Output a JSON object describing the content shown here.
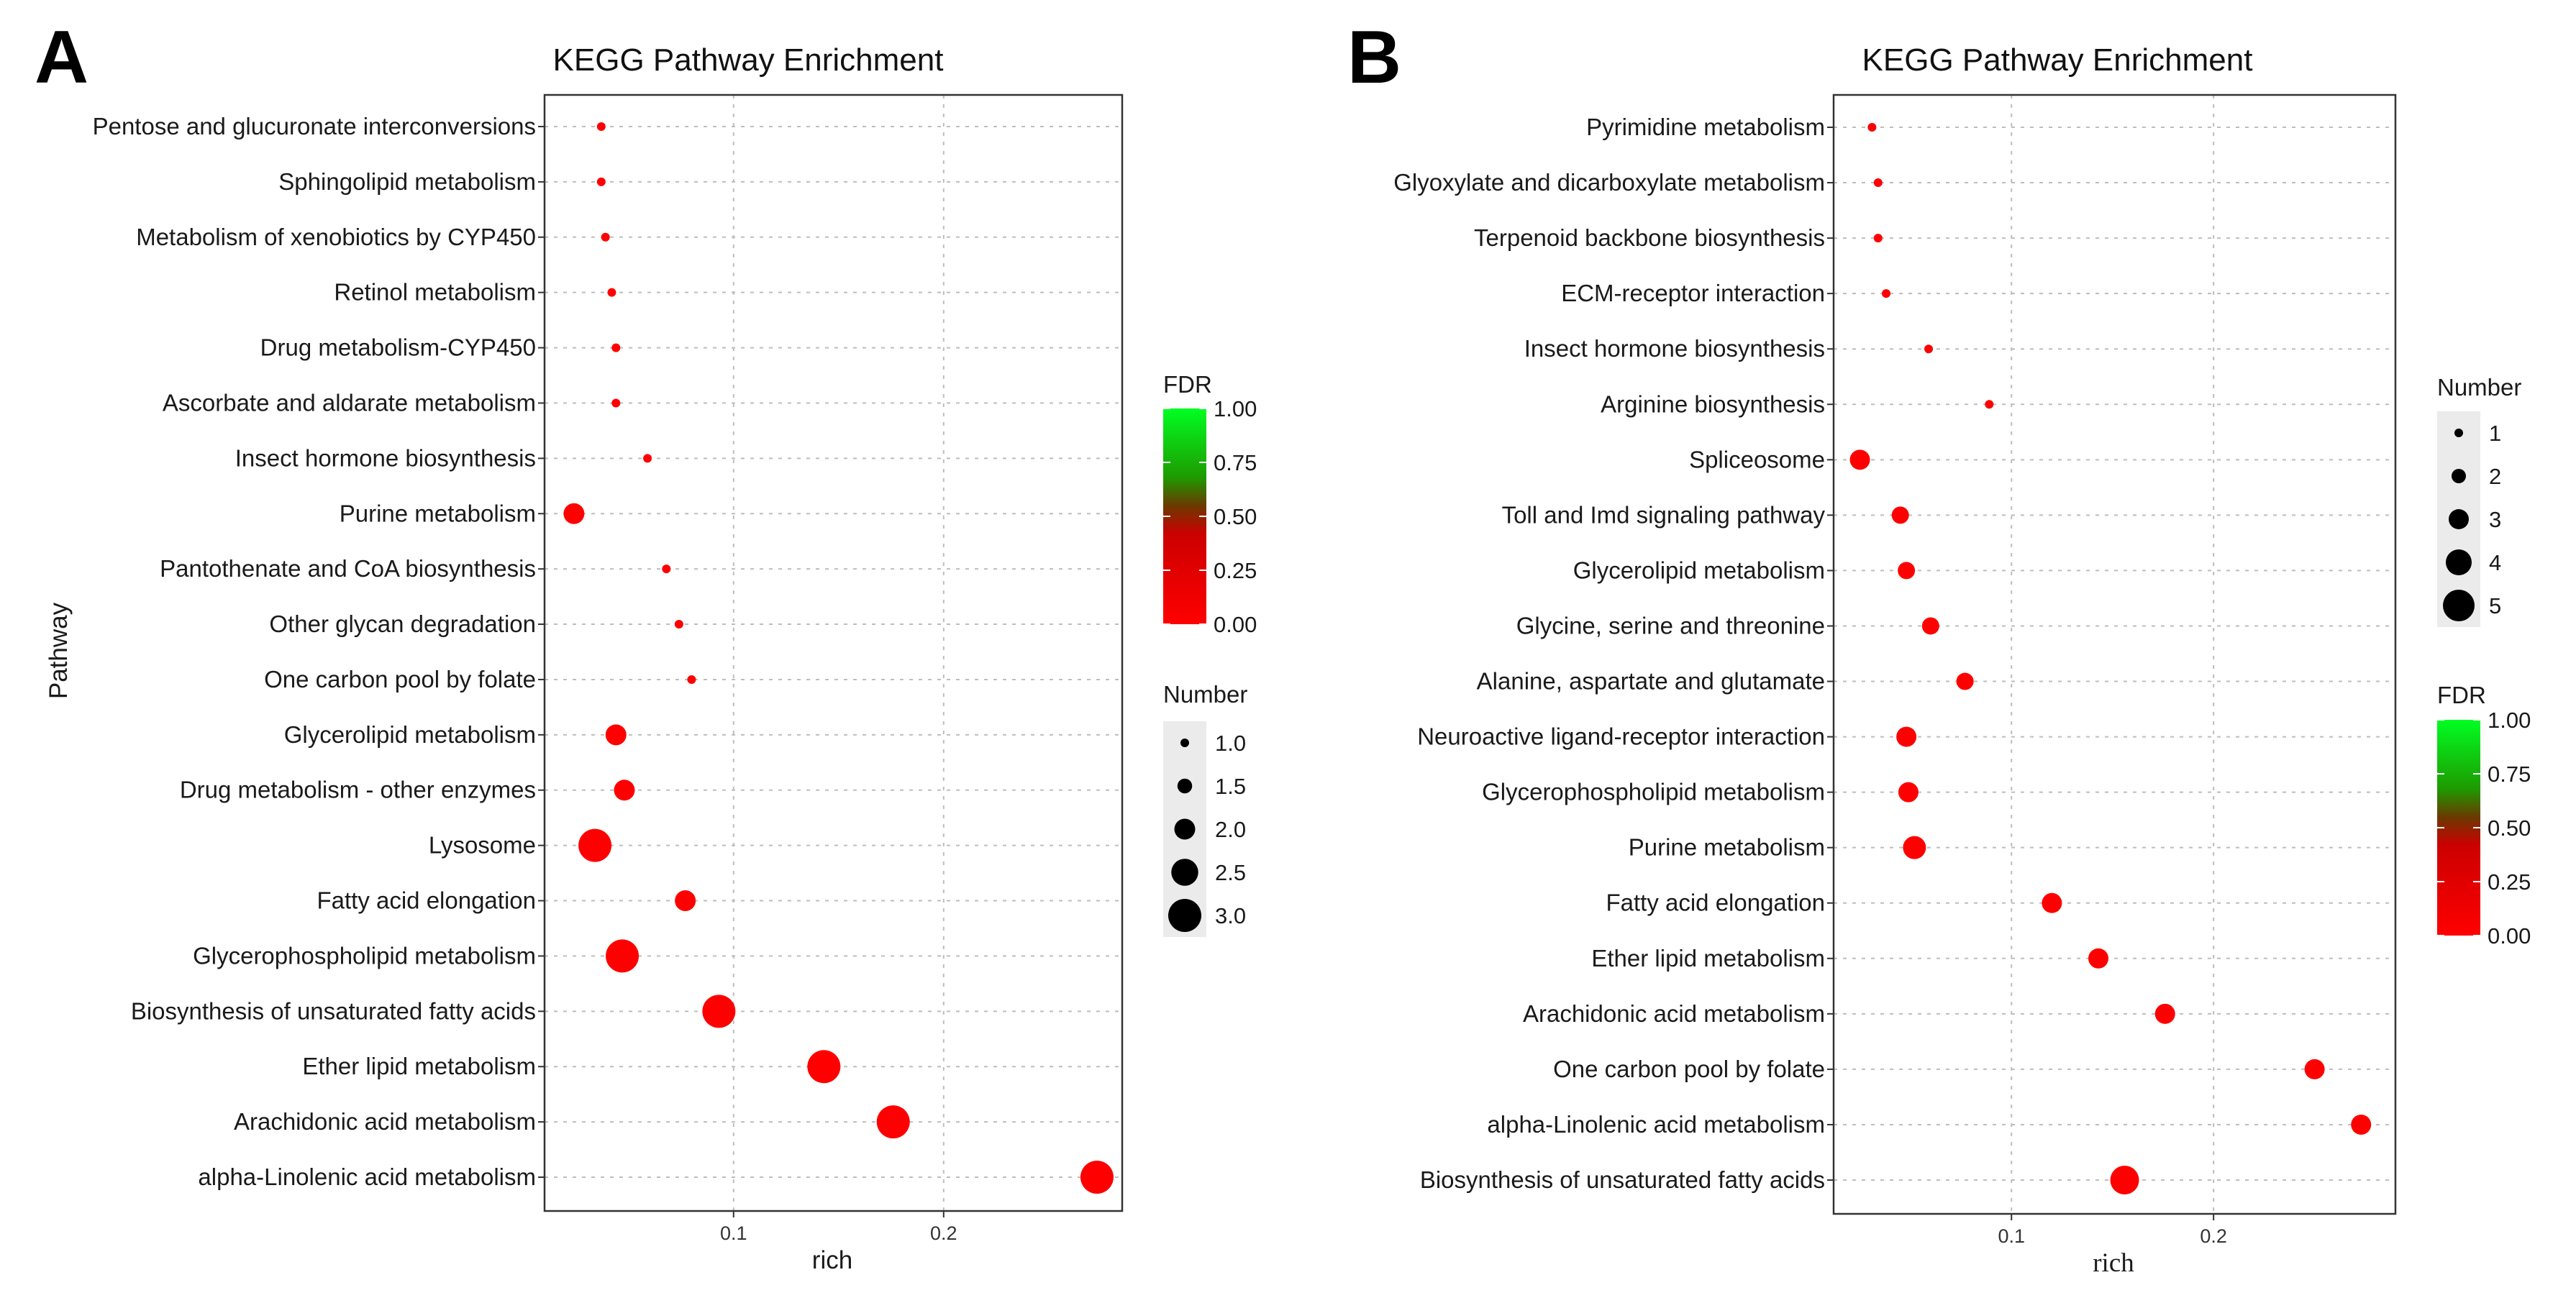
{
  "panels": [
    {
      "letter": "A",
      "chart_data": {
        "type": "scatter",
        "title": "KEGG Pathway Enrichment",
        "xlabel": "rich",
        "ylabel": "Pathway",
        "xlim": [
          0.01,
          0.285
        ],
        "xticks": [
          0.1,
          0.2
        ],
        "xtick_labels": [
          "0.1",
          "0.2"
        ],
        "grid": true,
        "categories": [
          "Pentose and glucuronate interconversions",
          "Sphingolipid metabolism",
          "Metabolism of xenobiotics by CYP450",
          "Retinol metabolism",
          "Drug metabolism-CYP450",
          "Ascorbate and aldarate metabolism",
          "Insect hormone biosynthesis",
          "Purine metabolism",
          "Pantothenate and CoA biosynthesis",
          "Other glycan degradation",
          "One carbon pool by folate",
          "Glycerolipid metabolism",
          "Drug metabolism - other enzymes",
          "Lysosome",
          "Fatty acid elongation",
          "Glycerophospholipid metabolism",
          "Biosynthesis of unsaturated fatty acids",
          "Ether lipid metabolism",
          "Arachidonic acid metabolism",
          "alpha-Linolenic acid metabolism"
        ],
        "rich": [
          0.037,
          0.037,
          0.039,
          0.042,
          0.044,
          0.044,
          0.059,
          0.024,
          0.068,
          0.074,
          0.08,
          0.044,
          0.048,
          0.034,
          0.077,
          0.047,
          0.093,
          0.143,
          0.176,
          0.273
        ],
        "number": [
          1,
          1,
          1,
          1,
          1,
          1,
          1,
          2,
          1,
          1,
          1,
          2,
          2,
          3,
          2,
          3,
          3,
          3,
          3,
          3
        ],
        "fdr": [
          0,
          0,
          0,
          0,
          0,
          0,
          0,
          0,
          0,
          0,
          0,
          0,
          0,
          0,
          0,
          0,
          0,
          0,
          0,
          0
        ],
        "legends_order": [
          "fdr",
          "number"
        ],
        "fdr_legend": {
          "title": "FDR",
          "ticks": [
            "1.00",
            "0.75",
            "0.50",
            "0.25",
            "0.00"
          ]
        },
        "number_legend": {
          "title": "Number",
          "values": [
            1.0,
            1.5,
            2.0,
            2.5,
            3.0
          ],
          "labels": [
            "1.0",
            "1.5",
            "2.0",
            "2.5",
            "3.0"
          ],
          "min": 1,
          "max": 3
        }
      }
    },
    {
      "letter": "B",
      "chart_data": {
        "type": "scatter",
        "title": "KEGG Pathway Enrichment",
        "xlabel": "rich",
        "ylabel": "",
        "xlim": [
          0.012,
          0.29
        ],
        "xticks": [
          0.1,
          0.2
        ],
        "xtick_labels": [
          "0.1",
          "0.2"
        ],
        "grid": true,
        "categories": [
          "Pyrimidine metabolism",
          "Glyoxylate and dicarboxylate metabolism",
          "Terpenoid backbone biosynthesis",
          "ECM-receptor interaction",
          "Insect hormone biosynthesis",
          "Arginine biosynthesis",
          "Spliceosome",
          "Toll and Imd signaling pathway",
          "Glycerolipid metabolism",
          "Glycine, serine and threonine",
          "Alanine, aspartate and glutamate",
          "Neuroactive ligand-receptor interaction",
          "Glycerophospholipid metabolism",
          "Purine metabolism",
          "Fatty acid elongation",
          "Ether lipid metabolism",
          "Arachidonic acid metabolism",
          "One carbon pool by folate",
          "alpha-Linolenic acid metabolism",
          "Biosynthesis of unsaturated fatty acids"
        ],
        "rich": [
          0.031,
          0.034,
          0.034,
          0.038,
          0.059,
          0.089,
          0.025,
          0.045,
          0.048,
          0.06,
          0.077,
          0.048,
          0.049,
          0.052,
          0.12,
          0.143,
          0.176,
          0.25,
          0.273,
          0.156
        ],
        "number": [
          1,
          1,
          1,
          1,
          1,
          1,
          3,
          2.5,
          2.5,
          2.5,
          2.5,
          3,
          3,
          3.5,
          3,
          3,
          3,
          3,
          3,
          4.5
        ],
        "fdr": [
          0,
          0,
          0,
          0,
          0,
          0,
          0,
          0,
          0,
          0,
          0,
          0,
          0,
          0,
          0,
          0,
          0,
          0,
          0,
          0
        ],
        "legends_order": [
          "number",
          "fdr"
        ],
        "fdr_legend": {
          "title": "FDR",
          "ticks": [
            "1.00",
            "0.75",
            "0.50",
            "0.25",
            "0.00"
          ]
        },
        "number_legend": {
          "title": "Number",
          "values": [
            1,
            2,
            3,
            4,
            5
          ],
          "labels": [
            "1",
            "2",
            "3",
            "4",
            "5"
          ],
          "min": 1,
          "max": 5
        }
      }
    }
  ]
}
